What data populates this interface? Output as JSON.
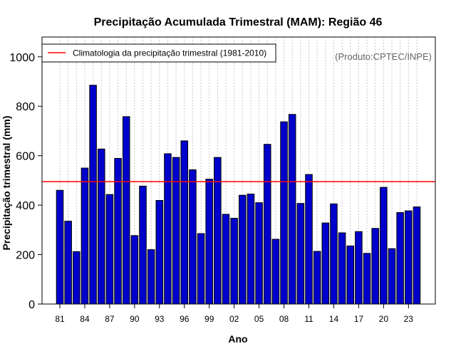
{
  "chart_data": {
    "type": "bar",
    "title": "Precipitação Acumulada Trimestral (MAM): Região 46",
    "xlabel": "Ano",
    "ylabel": "Precipitação trimestral (mm)",
    "ylim": [
      0,
      1080
    ],
    "yticks": [
      0,
      200,
      400,
      600,
      800,
      1000
    ],
    "grid": "vertical dotted",
    "categories": [
      "81",
      "82",
      "83",
      "84",
      "85",
      "86",
      "87",
      "88",
      "89",
      "90",
      "91",
      "92",
      "93",
      "94",
      "95",
      "96",
      "97",
      "98",
      "99",
      "00",
      "01",
      "02",
      "03",
      "04",
      "05",
      "06",
      "07",
      "08",
      "09",
      "10",
      "11",
      "12",
      "13",
      "14",
      "15",
      "16",
      "17",
      "18",
      "19",
      "20",
      "21",
      "22",
      "23",
      "24"
    ],
    "xtick_labels": [
      "81",
      "84",
      "87",
      "90",
      "93",
      "96",
      "99",
      "02",
      "05",
      "08",
      "11",
      "14",
      "17",
      "20",
      "23"
    ],
    "values": [
      460,
      335,
      212,
      550,
      885,
      627,
      443,
      589,
      758,
      277,
      477,
      220,
      419,
      608,
      593,
      660,
      543,
      285,
      505,
      593,
      363,
      347,
      440,
      445,
      410,
      646,
      262,
      737,
      767,
      407,
      524,
      213,
      328,
      405,
      288,
      235,
      293,
      205,
      306,
      472,
      224,
      370,
      377,
      393
    ],
    "climatology": 495,
    "legend": [
      {
        "label": "Climatologia da precipitação trimestral (1981-2010)",
        "color": "#ff0000"
      }
    ],
    "legend_position": "top-left",
    "annotation": "(Produto:CPTEC/INPE)",
    "colors": {
      "bar_fill": "#0000cc",
      "bar_edge": "#000000",
      "climatology_line": "#ff0000",
      "grid": "#c8c8c8"
    }
  }
}
